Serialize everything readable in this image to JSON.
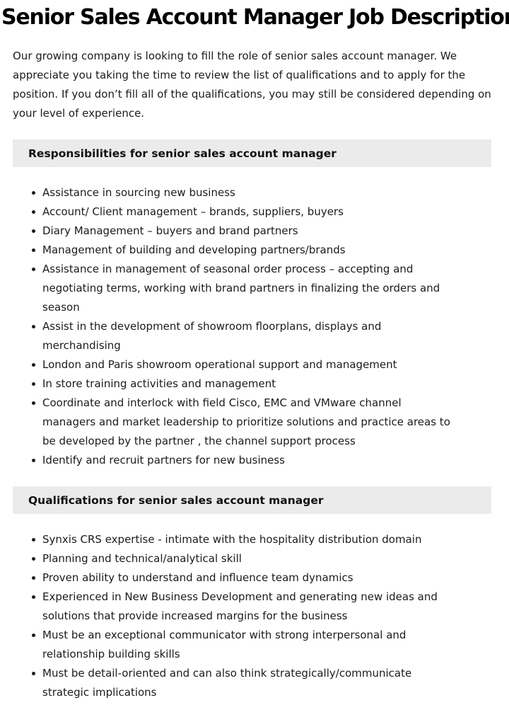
{
  "page": {
    "title": "Senior Sales Account Manager Job Description"
  },
  "colors": {
    "section_header_bg": "#ebebeb",
    "title_color": "#000000",
    "body_text_color": "#1b1b1b"
  },
  "intro": "Our growing company is looking to fill the role of senior sales account manager. We appreciate you taking the time to review the list of qualifications and to apply for the position. If you don’t fill all of the qualifications, you may still be considered depending on your level of experience.",
  "sections": [
    {
      "heading": "Responsibilities for senior sales account manager",
      "items": [
        "Assistance in sourcing new business",
        "Account/ Client management – brands, suppliers, buyers",
        "Diary Management – buyers and brand partners",
        "Management of building and developing partners/brands",
        "Assistance in management of seasonal order process – accepting and negotiating terms, working with brand partners in finalizing the orders and season",
        "Assist in the development of showroom floorplans, displays and merchandising",
        "London and Paris showroom operational support and management",
        "In store training activities and management",
        "Coordinate and interlock with field Cisco, EMC and VMware channel managers and market leadership to prioritize solutions and practice areas to be developed by the partner , the channel support process",
        "Identify and recruit partners for new business"
      ]
    },
    {
      "heading": "Qualifications for senior sales account manager",
      "items": [
        "Synxis CRS expertise - intimate with the hospitality distribution domain",
        "Planning and technical/analytical skill",
        "Proven ability to understand and influence team dynamics",
        "Experienced in New Business Development and generating new ideas and solutions that provide increased margins for the business",
        "Must be an exceptional communicator with strong interpersonal and relationship building skills",
        "Must be detail-oriented and can also think strategically/communicate strategic implications"
      ]
    }
  ]
}
